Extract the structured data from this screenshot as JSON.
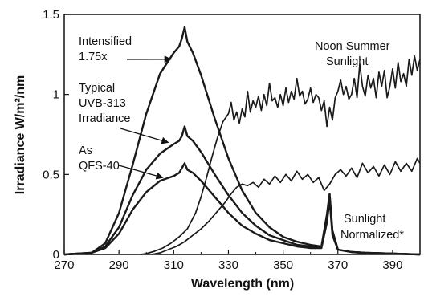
{
  "chart_data": {
    "type": "line",
    "xlabel": "Wavelength (nm)",
    "ylabel": "Irradiance  W/m²/nm",
    "xlim": [
      270,
      400
    ],
    "ylim": [
      0,
      1.5
    ],
    "x_ticks": [
      270,
      290,
      310,
      330,
      350,
      370,
      390
    ],
    "x_tick_labels": [
      "270",
      "290",
      "310",
      "330",
      "350",
      "370",
      "390"
    ],
    "y_ticks": [
      0,
      0.5,
      1,
      1.5
    ],
    "y_tick_labels": [
      "0",
      "0.5",
      "1",
      "1.5"
    ],
    "grid": false,
    "line_color": "#1a1a1a",
    "series": [
      {
        "key": "intensified",
        "points": [
          [
            270,
            0
          ],
          [
            280,
            0.01
          ],
          [
            285,
            0.07
          ],
          [
            290,
            0.26
          ],
          [
            295,
            0.56
          ],
          [
            300,
            0.88
          ],
          [
            305,
            1.13
          ],
          [
            310,
            1.26
          ],
          [
            312,
            1.3
          ],
          [
            313,
            1.35
          ],
          [
            314,
            1.42
          ],
          [
            315,
            1.33
          ],
          [
            317,
            1.26
          ],
          [
            320,
            1.12
          ],
          [
            325,
            0.85
          ],
          [
            330,
            0.6
          ],
          [
            335,
            0.4
          ],
          [
            340,
            0.26
          ],
          [
            345,
            0.17
          ],
          [
            350,
            0.11
          ],
          [
            355,
            0.08
          ],
          [
            360,
            0.06
          ],
          [
            364,
            0.05
          ],
          [
            366,
            0.25
          ],
          [
            367,
            0.38
          ],
          [
            368,
            0.15
          ],
          [
            370,
            0.03
          ],
          [
            375,
            0.015
          ],
          [
            380,
            0.01
          ],
          [
            390,
            0.005
          ],
          [
            400,
            0
          ]
        ]
      },
      {
        "key": "typical",
        "points": [
          [
            270,
            0
          ],
          [
            280,
            0.01
          ],
          [
            285,
            0.05
          ],
          [
            290,
            0.17
          ],
          [
            295,
            0.37
          ],
          [
            300,
            0.53
          ],
          [
            305,
            0.63
          ],
          [
            310,
            0.69
          ],
          [
            312,
            0.71
          ],
          [
            313,
            0.74
          ],
          [
            314,
            0.8
          ],
          [
            315,
            0.74
          ],
          [
            317,
            0.71
          ],
          [
            320,
            0.64
          ],
          [
            325,
            0.5
          ],
          [
            330,
            0.37
          ],
          [
            335,
            0.26
          ],
          [
            340,
            0.18
          ],
          [
            345,
            0.12
          ],
          [
            350,
            0.09
          ],
          [
            355,
            0.06
          ],
          [
            360,
            0.05
          ],
          [
            364,
            0.045
          ],
          [
            366,
            0.22
          ],
          [
            367,
            0.36
          ],
          [
            368,
            0.14
          ],
          [
            370,
            0.03
          ],
          [
            375,
            0.015
          ],
          [
            380,
            0.01
          ],
          [
            390,
            0.005
          ],
          [
            400,
            0
          ]
        ]
      },
      {
        "key": "qfs40",
        "points": [
          [
            270,
            0
          ],
          [
            280,
            0.01
          ],
          [
            285,
            0.04
          ],
          [
            290,
            0.13
          ],
          [
            295,
            0.28
          ],
          [
            300,
            0.39
          ],
          [
            305,
            0.46
          ],
          [
            310,
            0.49
          ],
          [
            312,
            0.51
          ],
          [
            313,
            0.54
          ],
          [
            314,
            0.57
          ],
          [
            315,
            0.53
          ],
          [
            317,
            0.51
          ],
          [
            320,
            0.46
          ],
          [
            325,
            0.36
          ],
          [
            330,
            0.26
          ],
          [
            335,
            0.18
          ],
          [
            340,
            0.13
          ],
          [
            345,
            0.09
          ],
          [
            350,
            0.07
          ],
          [
            355,
            0.05
          ],
          [
            360,
            0.04
          ],
          [
            364,
            0.04
          ],
          [
            366,
            0.2
          ],
          [
            367,
            0.34
          ],
          [
            368,
            0.12
          ],
          [
            370,
            0.03
          ],
          [
            375,
            0.015
          ],
          [
            380,
            0.01
          ],
          [
            390,
            0.005
          ],
          [
            400,
            0
          ]
        ]
      },
      {
        "key": "sunlight",
        "points": [
          [
            298,
            0
          ],
          [
            300,
            0.005
          ],
          [
            303,
            0.02
          ],
          [
            306,
            0.04
          ],
          [
            309,
            0.07
          ],
          [
            312,
            0.11
          ],
          [
            315,
            0.16
          ],
          [
            318,
            0.26
          ],
          [
            320,
            0.36
          ],
          [
            322,
            0.48
          ],
          [
            324,
            0.61
          ],
          [
            326,
            0.73
          ],
          [
            328,
            0.83
          ],
          [
            330,
            0.88
          ],
          [
            331,
            0.95
          ],
          [
            332,
            0.84
          ],
          [
            333,
            0.89
          ],
          [
            334,
            0.82
          ],
          [
            335,
            0.91
          ],
          [
            336,
            0.86
          ],
          [
            337,
            1.02
          ],
          [
            338,
            0.89
          ],
          [
            339,
            0.96
          ],
          [
            340,
            0.92
          ],
          [
            341,
            0.99
          ],
          [
            342,
            0.9
          ],
          [
            343,
            1.0
          ],
          [
            344,
            0.93
          ],
          [
            345,
            1.07
          ],
          [
            346,
            0.96
          ],
          [
            347,
            0.98
          ],
          [
            348,
            0.92
          ],
          [
            349,
            1.0
          ],
          [
            350,
            0.93
          ],
          [
            351,
            1.04
          ],
          [
            352,
            0.95
          ],
          [
            353,
            1.02
          ],
          [
            354,
            0.97
          ],
          [
            355,
            1.1
          ],
          [
            356,
            0.99
          ],
          [
            357,
            1.02
          ],
          [
            358,
            0.94
          ],
          [
            359,
            0.97
          ],
          [
            360,
            1.04
          ],
          [
            361,
            0.95
          ],
          [
            362,
            1.0
          ],
          [
            363,
            0.98
          ],
          [
            364,
            0.9
          ],
          [
            365,
            0.96
          ],
          [
            366,
            0.8
          ],
          [
            367,
            0.92
          ],
          [
            368,
            0.84
          ],
          [
            369,
            0.98
          ],
          [
            370,
            1.02
          ],
          [
            371,
            1.09
          ],
          [
            372,
            1.0
          ],
          [
            373,
            1.05
          ],
          [
            374,
            0.97
          ],
          [
            375,
            1.0
          ],
          [
            376,
            1.1
          ],
          [
            377,
            0.98
          ],
          [
            378,
            1.19
          ],
          [
            379,
            1.05
          ],
          [
            380,
            0.99
          ],
          [
            381,
            1.12
          ],
          [
            382,
            1.04
          ],
          [
            383,
            1.1
          ],
          [
            384,
            0.98
          ],
          [
            385,
            1.14
          ],
          [
            386,
            1.05
          ],
          [
            387,
            1.15
          ],
          [
            388,
            0.98
          ],
          [
            389,
            1.05
          ],
          [
            390,
            1.16
          ],
          [
            391,
            1.04
          ],
          [
            392,
            1.2
          ],
          [
            393,
            1.08
          ],
          [
            394,
            1.13
          ],
          [
            395,
            1.05
          ],
          [
            396,
            1.22
          ],
          [
            397,
            1.12
          ],
          [
            398,
            1.24
          ],
          [
            399,
            1.15
          ],
          [
            400,
            1.22
          ]
        ]
      },
      {
        "key": "sunlight_normalized",
        "points": [
          [
            302,
            0
          ],
          [
            305,
            0.01
          ],
          [
            308,
            0.03
          ],
          [
            311,
            0.05
          ],
          [
            314,
            0.08
          ],
          [
            317,
            0.12
          ],
          [
            320,
            0.16
          ],
          [
            323,
            0.21
          ],
          [
            326,
            0.27
          ],
          [
            329,
            0.33
          ],
          [
            331,
            0.38
          ],
          [
            333,
            0.42
          ],
          [
            335,
            0.44
          ],
          [
            337,
            0.43
          ],
          [
            339,
            0.45
          ],
          [
            341,
            0.42
          ],
          [
            343,
            0.47
          ],
          [
            345,
            0.44
          ],
          [
            347,
            0.49
          ],
          [
            349,
            0.45
          ],
          [
            351,
            0.5
          ],
          [
            353,
            0.46
          ],
          [
            355,
            0.52
          ],
          [
            357,
            0.47
          ],
          [
            359,
            0.5
          ],
          [
            361,
            0.45
          ],
          [
            363,
            0.48
          ],
          [
            365,
            0.4
          ],
          [
            367,
            0.44
          ],
          [
            369,
            0.5
          ],
          [
            371,
            0.53
          ],
          [
            373,
            0.49
          ],
          [
            375,
            0.54
          ],
          [
            377,
            0.48
          ],
          [
            379,
            0.57
          ],
          [
            381,
            0.51
          ],
          [
            383,
            0.55
          ],
          [
            385,
            0.49
          ],
          [
            387,
            0.56
          ],
          [
            389,
            0.5
          ],
          [
            391,
            0.58
          ],
          [
            393,
            0.52
          ],
          [
            395,
            0.57
          ],
          [
            397,
            0.52
          ],
          [
            399,
            0.6
          ],
          [
            400,
            0.57
          ]
        ]
      }
    ],
    "annotations": [
      {
        "key": "intensified",
        "lines": [
          "Intensified",
          "1.75x"
        ],
        "arrow_to": [
          309,
          1.22
        ]
      },
      {
        "key": "typical",
        "lines": [
          "Typical",
          "UVB-313",
          "Irradiance"
        ],
        "arrow_to": [
          308,
          0.7
        ]
      },
      {
        "key": "qfs40",
        "lines": [
          "As",
          "QFS-40"
        ],
        "arrow_to": [
          306,
          0.48
        ]
      },
      {
        "key": "noon",
        "lines": [
          "Noon Summer",
          "Sunlight"
        ]
      },
      {
        "key": "normalized",
        "lines": [
          "Sunlight",
          "Normalized*"
        ]
      }
    ]
  }
}
